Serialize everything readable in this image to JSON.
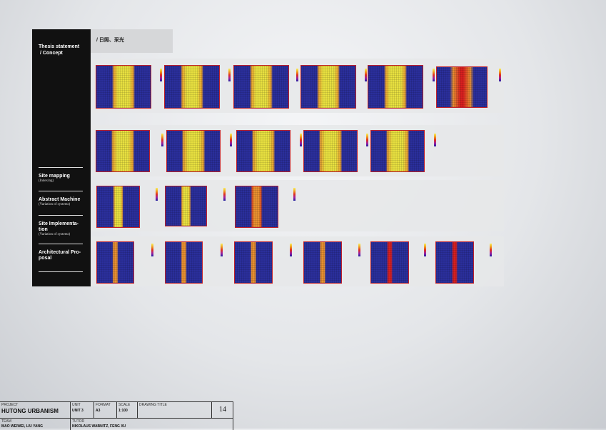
{
  "sidebar": {
    "thesis": "Thesis statement\n / Concept",
    "items": [
      {
        "title": "Site mapping",
        "sub": "(Indexing)"
      },
      {
        "title": "Abstract Machine",
        "sub": "(Variation of systems)"
      },
      {
        "title": "Site Implementa-\ntion",
        "sub": "(Variation of systems)"
      },
      {
        "title": "Architectural Pro-\nposal",
        "sub": ""
      }
    ]
  },
  "heading": "/ 日照、采光",
  "colors": {
    "blue": "#2b2f9c",
    "yellow": "#e8e040",
    "orange": "#e89030",
    "red": "#d82020",
    "frame": "#c0202a"
  },
  "title_block": {
    "project_label": "PROJECT",
    "project": "HUTONG URBANISM",
    "unit_label": "UNIT",
    "unit": "UNIT 3",
    "format_label": "FORMAT",
    "format": "A3",
    "scale_label": "SCALE",
    "scale": "1:100",
    "drawing_title_label": "DRAWING TITLE",
    "sheet_number": "14",
    "team_label": "TEAM",
    "team": "MAO WEIWEI, LIU YANG",
    "tutor_label": "TUTOR",
    "tutor": "NIKOLAUS WABNITZ, FENG XU"
  }
}
